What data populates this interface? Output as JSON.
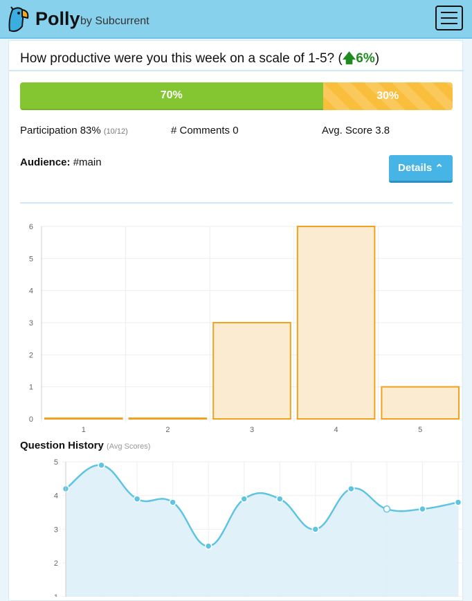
{
  "header": {
    "brand": "Polly",
    "byline": "by Subcurrent"
  },
  "question": {
    "text": "How productive were you this week on a scale of 1-5? (",
    "change": "6%",
    "close": ")"
  },
  "progress": {
    "segments": [
      {
        "label": "70%",
        "percent": 70
      },
      {
        "label": "30%",
        "percent": 30
      }
    ]
  },
  "stats": {
    "participation": "Participation 83%",
    "participation_detail": "(10/12)",
    "comments": "# Comments 0",
    "avg": "Avg. Score 3.8"
  },
  "audience": {
    "label": "Audience:",
    "value": "#main"
  },
  "details_button": "Details",
  "history": {
    "title": "Question History",
    "subtitle": "(Avg Scores)"
  },
  "chart_data": [
    {
      "type": "bar",
      "categories": [
        "1",
        "2",
        "3",
        "4",
        "5"
      ],
      "values": [
        0,
        0,
        3,
        6,
        1
      ],
      "ylim": [
        0,
        6
      ],
      "yticks": [
        "0",
        "1",
        "2",
        "3",
        "4",
        "5",
        "6"
      ],
      "grid": true
    },
    {
      "type": "area",
      "title": "Question History",
      "values": [
        4.2,
        4.9,
        3.9,
        3.8,
        2.5,
        3.9,
        3.9,
        3.0,
        4.2,
        3.6,
        3.6,
        3.8
      ],
      "yticks": [
        "1",
        "2",
        "3",
        "4",
        "5"
      ],
      "ylim": [
        1,
        5
      ],
      "grid": true
    }
  ]
}
